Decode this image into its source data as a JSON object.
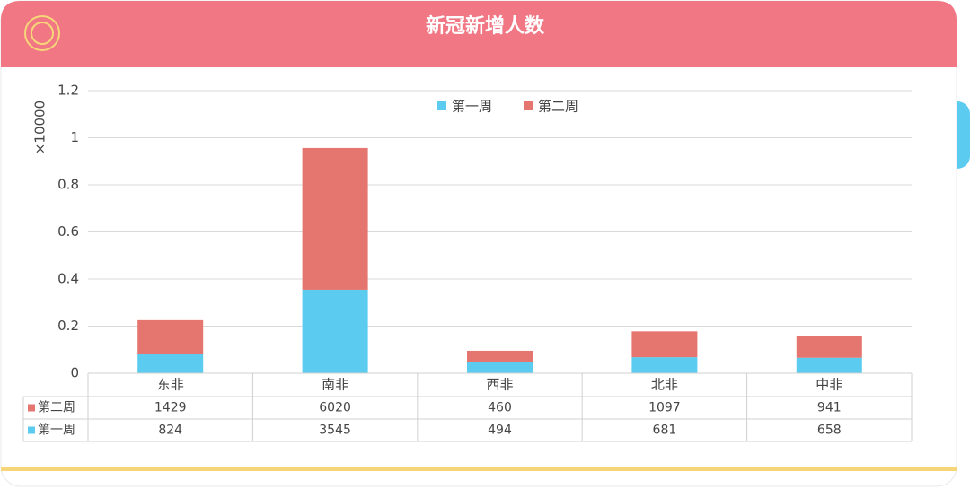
{
  "chart_data": {
    "type": "bar",
    "stacked": true,
    "title": "新冠新增人数",
    "y_label": "×10000",
    "categories": [
      "东非",
      "南非",
      "西非",
      "北非",
      "中非"
    ],
    "series": [
      {
        "name": "第一周",
        "color": "#5bcbef",
        "values": [
          824,
          3545,
          494,
          681,
          658
        ]
      },
      {
        "name": "第二周",
        "color": "#e5766f",
        "values": [
          1429,
          6020,
          460,
          1097,
          941
        ]
      }
    ],
    "ylim": [
      0,
      12000
    ],
    "yticks": [
      0,
      {
        "value": 2000,
        "label": "0.2"
      },
      {
        "value": 4000,
        "label": "0.4"
      },
      {
        "value": 6000,
        "label": "0.6"
      },
      {
        "value": 8000,
        "label": "0.8"
      },
      {
        "value": 10000,
        "label": "1"
      },
      {
        "value": 12000,
        "label": "1.2"
      }
    ],
    "grid": true,
    "legend": "top",
    "data_table": true
  }
}
